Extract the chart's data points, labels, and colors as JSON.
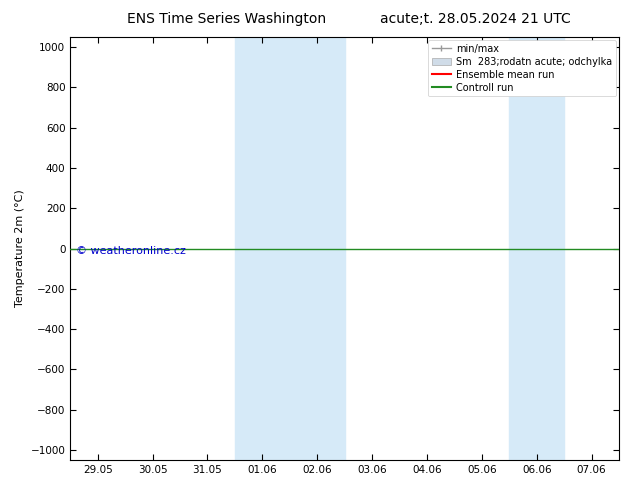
{
  "title_left": "ENS Time Series Washington",
  "title_right": "acute;t. 28.05.2024 21 UTC",
  "ylabel": "Temperature 2m (°C)",
  "watermark": "© weatheronline.cz",
  "yticks": [
    -1000,
    -800,
    -600,
    -400,
    -200,
    0,
    200,
    400,
    600,
    800,
    1000
  ],
  "ylim_top": -1050,
  "ylim_bottom": 1050,
  "xtick_labels": [
    "29.05",
    "30.05",
    "31.05",
    "01.06",
    "02.06",
    "03.06",
    "04.06",
    "05.06",
    "06.06",
    "07.06"
  ],
  "xtick_positions": [
    0,
    1,
    2,
    3,
    4,
    5,
    6,
    7,
    8,
    9
  ],
  "xlim": [
    -0.5,
    9.5
  ],
  "shaded_bands": [
    {
      "x_start": 2.5,
      "x_end": 4.5,
      "color": "#d6eaf8"
    },
    {
      "x_start": 7.5,
      "x_end": 8.5,
      "color": "#d6eaf8"
    }
  ],
  "horizontal_line_y": 0,
  "controll_run_color": "#228B22",
  "ensemble_mean_color": "#ff0000",
  "minmax_color": "#999999",
  "spread_color": "#d0dce8",
  "background_color": "#ffffff",
  "plot_bg_color": "#ffffff",
  "legend_items": [
    {
      "label": "min/max",
      "color": "#999999",
      "lw": 1.0
    },
    {
      "label": "Sm  283;rodatn acute; odchylka",
      "color": "#d0dce8",
      "lw": 8
    },
    {
      "label": "Ensemble mean run",
      "color": "#ff0000",
      "lw": 1.5
    },
    {
      "label": "Controll run",
      "color": "#228B22",
      "lw": 1.5
    }
  ],
  "title_fontsize": 10,
  "axis_fontsize": 8,
  "tick_fontsize": 7.5,
  "watermark_color": "#0000cc",
  "watermark_fontsize": 8
}
